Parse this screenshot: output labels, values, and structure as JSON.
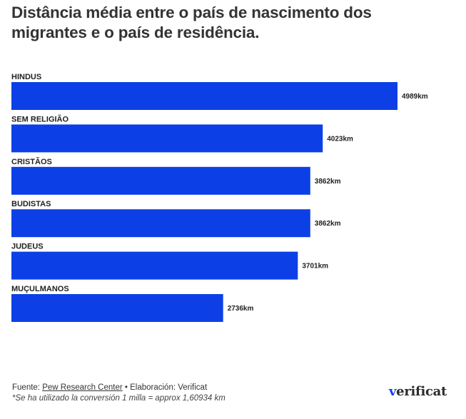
{
  "title": "Distância média entre o país de nascimento dos migrantes e o país de residência.",
  "chart_data": {
    "type": "bar",
    "orientation": "horizontal",
    "title": "Distância média entre o país de nascimento dos migrantes e o país de residência.",
    "categories": [
      "HINDUS",
      "SEM RELIGIÃO",
      "CRISTÃOS",
      "BUDISTAS",
      "JUDEUS",
      "MUÇULMANOS"
    ],
    "values": [
      4989,
      4023,
      3862,
      3862,
      3701,
      2736
    ],
    "value_labels": [
      "4989km",
      "4023km",
      "3862km",
      "3862km",
      "3701km",
      "2736km"
    ],
    "unit": "km",
    "xlabel": "",
    "ylabel": "",
    "xlim": [
      0,
      4989
    ],
    "grid": false,
    "legend": "none",
    "bar_color": "#0c40e6"
  },
  "footer": {
    "source_prefix": "Fuente: ",
    "source_link": "Pew Research Center",
    "source_suffix": " • Elaboración: Verificat",
    "note": "*Se ha utilizado la conversión 1 milla = approx 1,60934 km"
  },
  "logo": {
    "mark": "v",
    "text": "erificat"
  }
}
